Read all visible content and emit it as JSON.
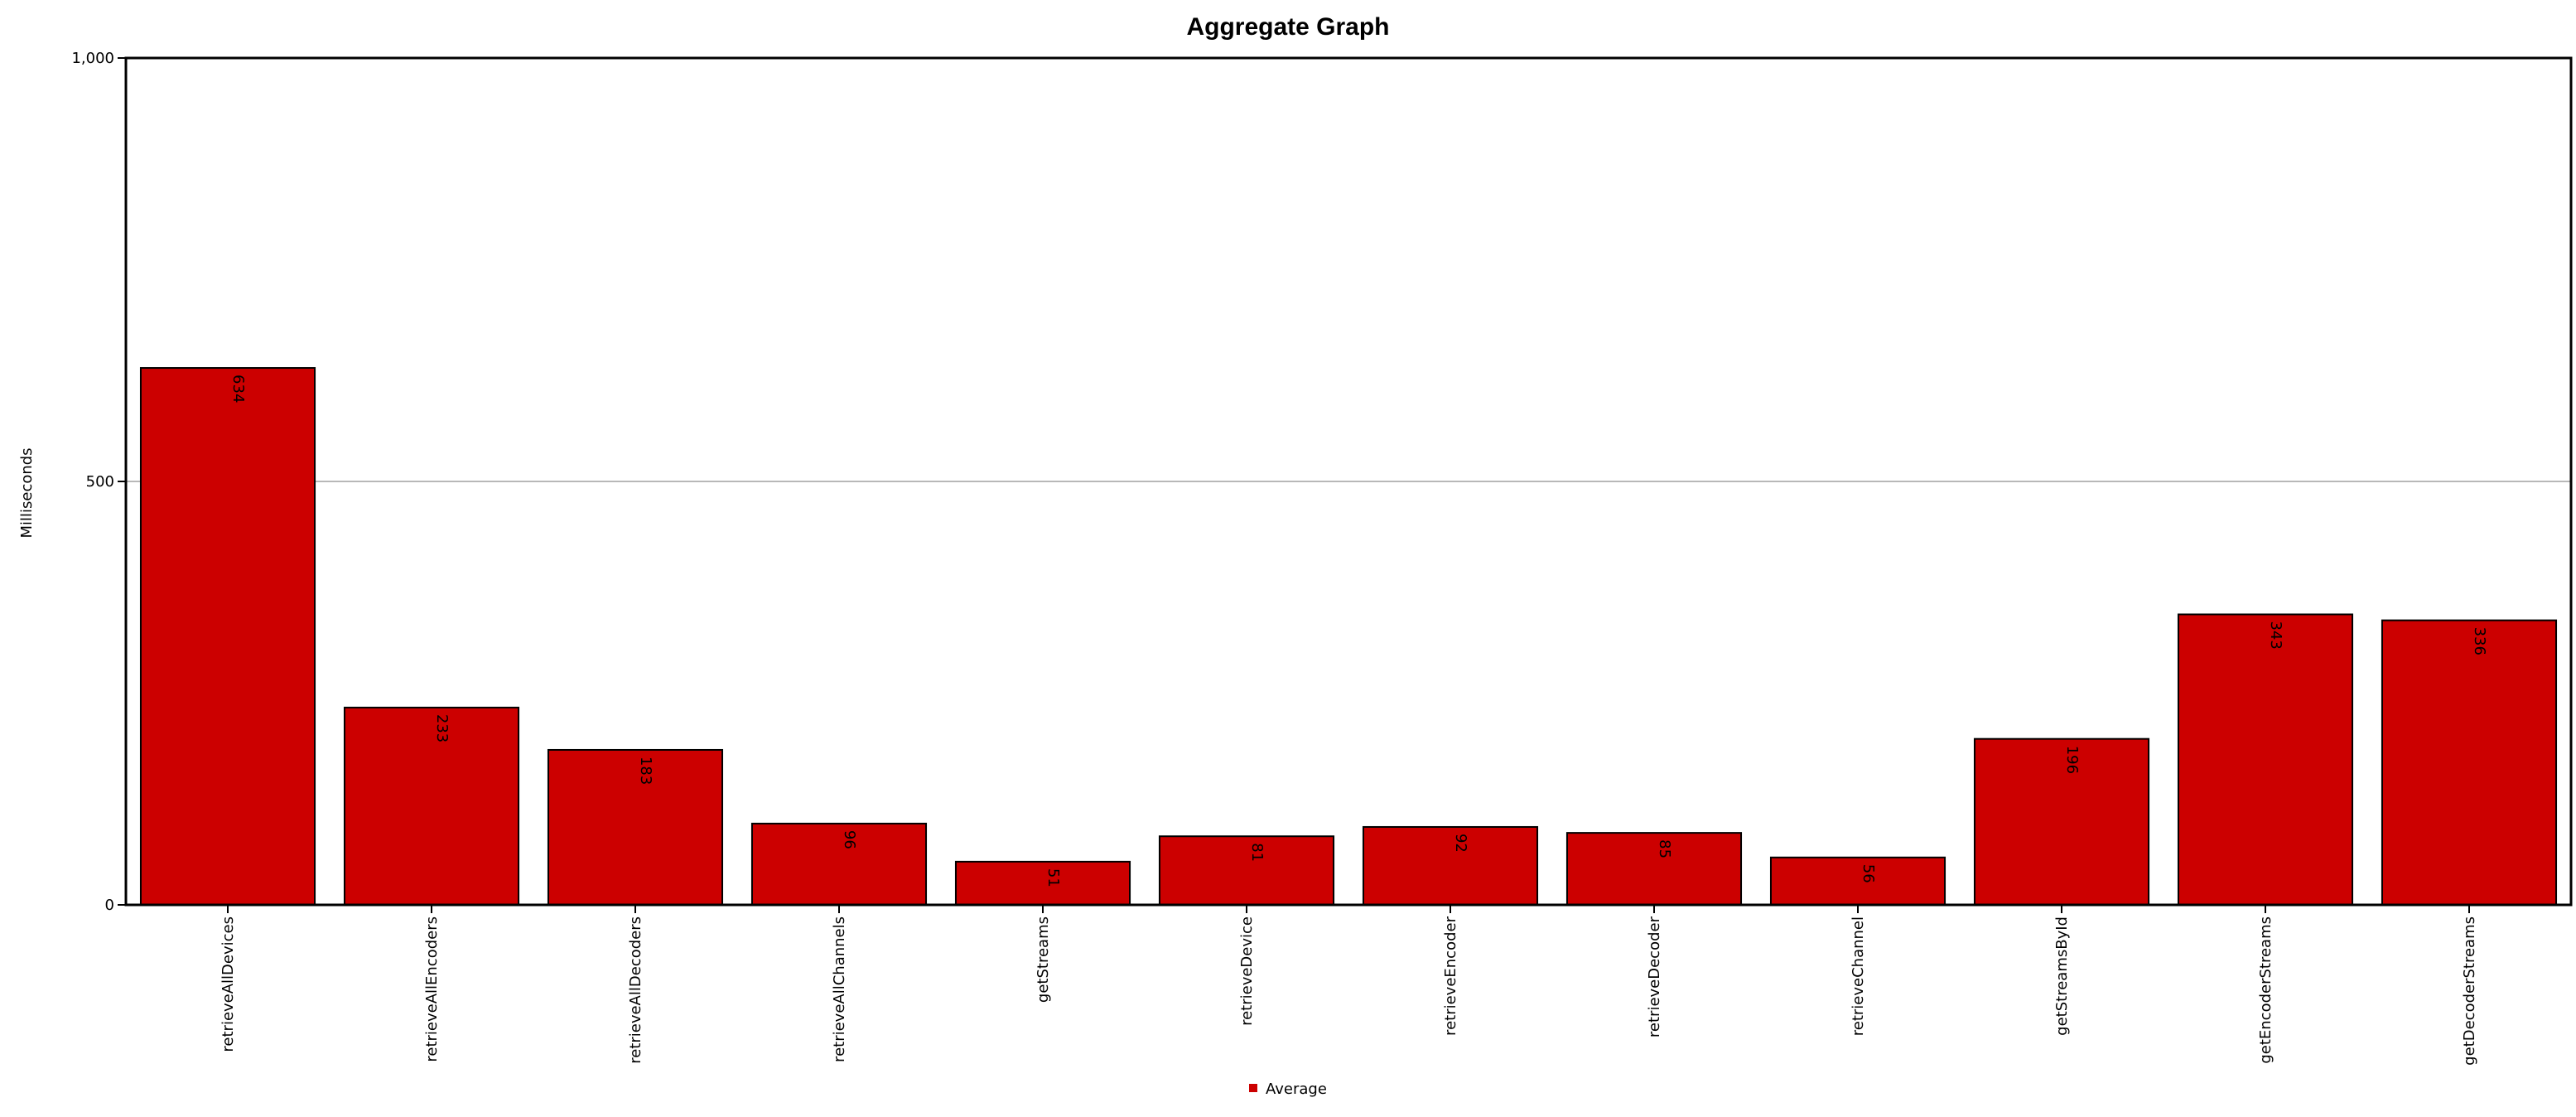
{
  "chart_data": {
    "type": "bar",
    "title": "Aggregate Graph",
    "xlabel": "",
    "ylabel": "Milliseconds",
    "ylim": [
      0,
      1000
    ],
    "y_ticks": [
      {
        "value": 0,
        "label": "0"
      },
      {
        "value": 500,
        "label": "500"
      },
      {
        "value": 1000,
        "label": "1,000"
      }
    ],
    "grid": true,
    "legend_position": "bottom-center",
    "categories": [
      "retrieveAllDevices",
      "retrieveAllEncoders",
      "retrieveAllDecoders",
      "retrieveAllChannels",
      "getStreams",
      "retrieveDevice",
      "retrieveEncoder",
      "retrieveDecoder",
      "retrieveChannel",
      "getStreamsById",
      "getEncoderStreams",
      "getDecoderStreams"
    ],
    "series": [
      {
        "name": "Average",
        "color": "#cc0000",
        "values": [
          634,
          233,
          183,
          96,
          51,
          81,
          92,
          85,
          56,
          196,
          343,
          336
        ]
      }
    ]
  }
}
